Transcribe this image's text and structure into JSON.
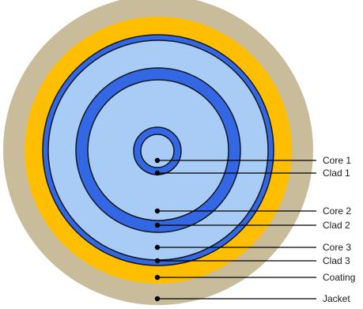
{
  "colors": {
    "jacket": "#C8BC9B",
    "coating": "#FFBE00",
    "clad": "#3467E3",
    "core": "#A9CCF6",
    "outline": "#101820",
    "leader": "#000000"
  },
  "labels": {
    "core1": "Core 1",
    "clad1": "Clad 1",
    "core2": "Core 2",
    "clad2": "Clad 2",
    "core3": "Core 3",
    "clad3": "Clad 3",
    "coating": "Coating",
    "jacket": "Jacket"
  }
}
